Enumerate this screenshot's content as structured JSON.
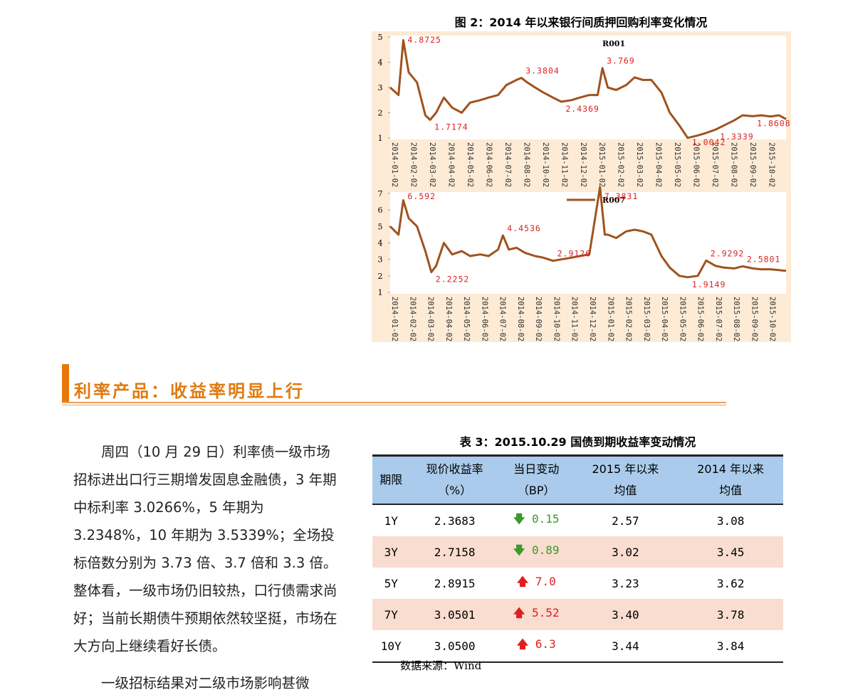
{
  "figure": {
    "caption": "图 2：2014 年以来银行间质押回购利率变化情况",
    "charts": [
      {
        "type": "line",
        "legend_line": false,
        "series": [
          {
            "name": "R001",
            "color": "#a0521e",
            "x": [
              "2014-01-02",
              "2014-01-16",
              "2014-01-24",
              "2014-02-02",
              "2014-02-16",
              "2014-03-02",
              "2014-03-10",
              "2014-03-20",
              "2014-04-02",
              "2014-04-16",
              "2014-05-02",
              "2014-05-16",
              "2014-06-02",
              "2014-06-16",
              "2014-07-02",
              "2014-07-16",
              "2014-08-02",
              "2014-08-10",
              "2014-08-20",
              "2014-09-02",
              "2014-09-16",
              "2014-10-02",
              "2014-10-16",
              "2014-11-02",
              "2014-11-16",
              "2014-12-02",
              "2014-12-16",
              "2014-12-24",
              "2015-01-02",
              "2015-01-16",
              "2015-02-02",
              "2015-02-16",
              "2015-03-02",
              "2015-03-16",
              "2015-04-02",
              "2015-04-16",
              "2015-05-02",
              "2015-05-16",
              "2015-06-02",
              "2015-06-16",
              "2015-07-02",
              "2015-07-16",
              "2015-08-02",
              "2015-08-16",
              "2015-09-02",
              "2015-09-16",
              "2015-10-02",
              "2015-10-16",
              "2015-10-28"
            ],
            "values": [
              3.0,
              2.7,
              4.8725,
              3.6,
              3.2,
              1.9,
              1.7174,
              2.0,
              2.6,
              2.2,
              2.0,
              2.4,
              2.5,
              2.6,
              2.7,
              3.1,
              3.3,
              3.3804,
              3.2,
              3.0,
              2.8,
              2.6,
              2.4369,
              2.5,
              2.6,
              2.7,
              2.7,
              3.769,
              3.0,
              2.9,
              3.1,
              3.4,
              3.3,
              3.3,
              2.8,
              2.0,
              1.5,
              1.0042,
              1.1,
              1.2,
              1.3339,
              1.5,
              1.7,
              1.9,
              1.8608,
              1.9,
              1.85,
              1.9,
              1.75
            ]
          }
        ],
        "annotations": [
          {
            "x": "2014-01-24",
            "y": 4.8725
          },
          {
            "x": "2014-03-10",
            "y": 1.7174
          },
          {
            "x": "2014-08-10",
            "y": 3.3804
          },
          {
            "x": "2014-10-16",
            "y": 2.4369
          },
          {
            "x": "2014-12-24",
            "y": 3.769
          },
          {
            "x": "2015-05-16",
            "y": 1.0042
          },
          {
            "x": "2015-07-02",
            "y": 1.3339
          },
          {
            "x": "2015-09-02",
            "y": 1.8608
          }
        ],
        "ylim": [
          1,
          5
        ],
        "yticks": [
          1,
          2,
          3,
          4,
          5
        ],
        "xlim": [
          "2014-01-02",
          "2015-10-28"
        ],
        "xticks": [
          "2014-01-02",
          "2014-02-02",
          "2014-03-02",
          "2014-04-02",
          "2014-05-02",
          "2014-06-02",
          "2014-07-02",
          "2014-08-02",
          "2014-10-02",
          "2014-11-02",
          "2014-12-02",
          "2015-01-02",
          "2015-02-02",
          "2015-03-02",
          "2015-04-02",
          "2015-05-02",
          "2015-06-02",
          "2015-07-02",
          "2015-08-02",
          "2015-09-02",
          "2015-10-02"
        ]
      },
      {
        "type": "line",
        "legend_line": true,
        "series": [
          {
            "name": "R007",
            "color": "#a0521e",
            "x": [
              "2014-01-02",
              "2014-01-16",
              "2014-01-24",
              "2014-02-02",
              "2014-02-16",
              "2014-03-02",
              "2014-03-12",
              "2014-03-20",
              "2014-04-02",
              "2014-04-16",
              "2014-05-02",
              "2014-05-16",
              "2014-06-02",
              "2014-06-16",
              "2014-07-02",
              "2014-07-10",
              "2014-07-20",
              "2014-08-02",
              "2014-08-16",
              "2014-09-02",
              "2014-09-16",
              "2014-10-02",
              "2014-10-16",
              "2014-11-02",
              "2014-11-16",
              "2014-12-02",
              "2014-12-20",
              "2014-12-28",
              "2015-01-02",
              "2015-01-16",
              "2015-02-02",
              "2015-02-16",
              "2015-03-02",
              "2015-03-16",
              "2015-04-02",
              "2015-04-16",
              "2015-05-02",
              "2015-05-16",
              "2015-06-02",
              "2015-06-16",
              "2015-07-02",
              "2015-07-16",
              "2015-08-02",
              "2015-08-16",
              "2015-09-02",
              "2015-09-16",
              "2015-10-02",
              "2015-10-16",
              "2015-10-28"
            ],
            "values": [
              5.0,
              4.5,
              6.592,
              5.5,
              5.0,
              3.5,
              2.2252,
              2.6,
              4.0,
              3.3,
              3.5,
              3.2,
              3.3,
              3.2,
              3.6,
              4.4536,
              3.6,
              3.7,
              3.4,
              3.2,
              3.1,
              2.9126,
              3.0,
              3.1,
              3.2,
              3.3,
              7.3831,
              4.5,
              4.5,
              4.3,
              4.7,
              4.8,
              4.7,
              4.5,
              3.2,
              2.5,
              2.0,
              1.9149,
              2.0,
              2.9292,
              2.6,
              2.5,
              2.45,
              2.5801,
              2.45,
              2.4,
              2.4,
              2.35,
              2.3
            ]
          }
        ],
        "annotations": [
          {
            "x": "2014-01-24",
            "y": 6.592
          },
          {
            "x": "2014-03-12",
            "y": 2.2252
          },
          {
            "x": "2014-07-10",
            "y": 4.4536
          },
          {
            "x": "2014-10-02",
            "y": 2.9126
          },
          {
            "x": "2014-12-20",
            "y": 7.3831
          },
          {
            "x": "2015-05-16",
            "y": 1.9149
          },
          {
            "x": "2015-06-16",
            "y": 2.9292
          },
          {
            "x": "2015-08-16",
            "y": 2.5801
          }
        ],
        "ylim": [
          1,
          7
        ],
        "yticks": [
          1,
          2,
          3,
          4,
          5,
          6,
          7
        ],
        "xlim": [
          "2014-01-02",
          "2015-10-28"
        ],
        "xticks": [
          "2014-01-02",
          "2014-02-02",
          "2014-03-02",
          "2014-04-02",
          "2014-05-02",
          "2014-06-02",
          "2014-07-02",
          "2014-08-02",
          "2014-09-02",
          "2014-10-02",
          "2014-11-02",
          "2014-12-02",
          "2015-01-02",
          "2015-02-02",
          "2015-03-02",
          "2015-04-02",
          "2015-05-02",
          "2015-06-02",
          "2015-07-02",
          "2015-08-02",
          "2015-09-02",
          "2015-10-02"
        ]
      }
    ]
  },
  "section": {
    "title": "利率产品：收益率明显上行"
  },
  "paragraphs": [
    "周四（10 月 29 日）利率债一级市场招标进出口行三期增发固息金融债，3 年期中标利率 3.0266%，5 年期为 3.2348%，10 年期为 3.5339%；全场投标倍数分别为 3.73 倍、3.7 倍和 3.3 倍。整体看，一级市场仍旧较热，口行债需求尚好；当前长期债牛预期依然较坚挺，市场在大方向上继续看好长债。",
    "一级招标结果对二级市场影响甚微"
  ],
  "table": {
    "caption": "表 3：2015.10.29 国债到期收益率变动情况",
    "header": [
      [
        "期限"
      ],
      [
        "现价收益率",
        "（%）"
      ],
      [
        "当日变动",
        "（BP）"
      ],
      [
        "2015 年以来",
        "均值"
      ],
      [
        "2014 年以来",
        "均值"
      ]
    ],
    "rows": [
      {
        "term": "1Y",
        "yield": "2.3683",
        "change": "0.15",
        "direction": "down",
        "avg2015": "2.57",
        "avg2014": "3.08"
      },
      {
        "term": "3Y",
        "yield": "2.7158",
        "change": "0.89",
        "direction": "down",
        "avg2015": "3.02",
        "avg2014": "3.45"
      },
      {
        "term": "5Y",
        "yield": "2.8915",
        "change": "7.0",
        "direction": "up",
        "avg2015": "3.23",
        "avg2014": "3.62"
      },
      {
        "term": "7Y",
        "yield": "3.0501",
        "change": "5.52",
        "direction": "up",
        "avg2015": "3.40",
        "avg2014": "3.78"
      },
      {
        "term": "10Y",
        "yield": "3.0500",
        "change": "6.3",
        "direction": "up",
        "avg2015": "3.44",
        "avg2014": "3.84"
      }
    ],
    "source": "数据来源：Wind"
  }
}
